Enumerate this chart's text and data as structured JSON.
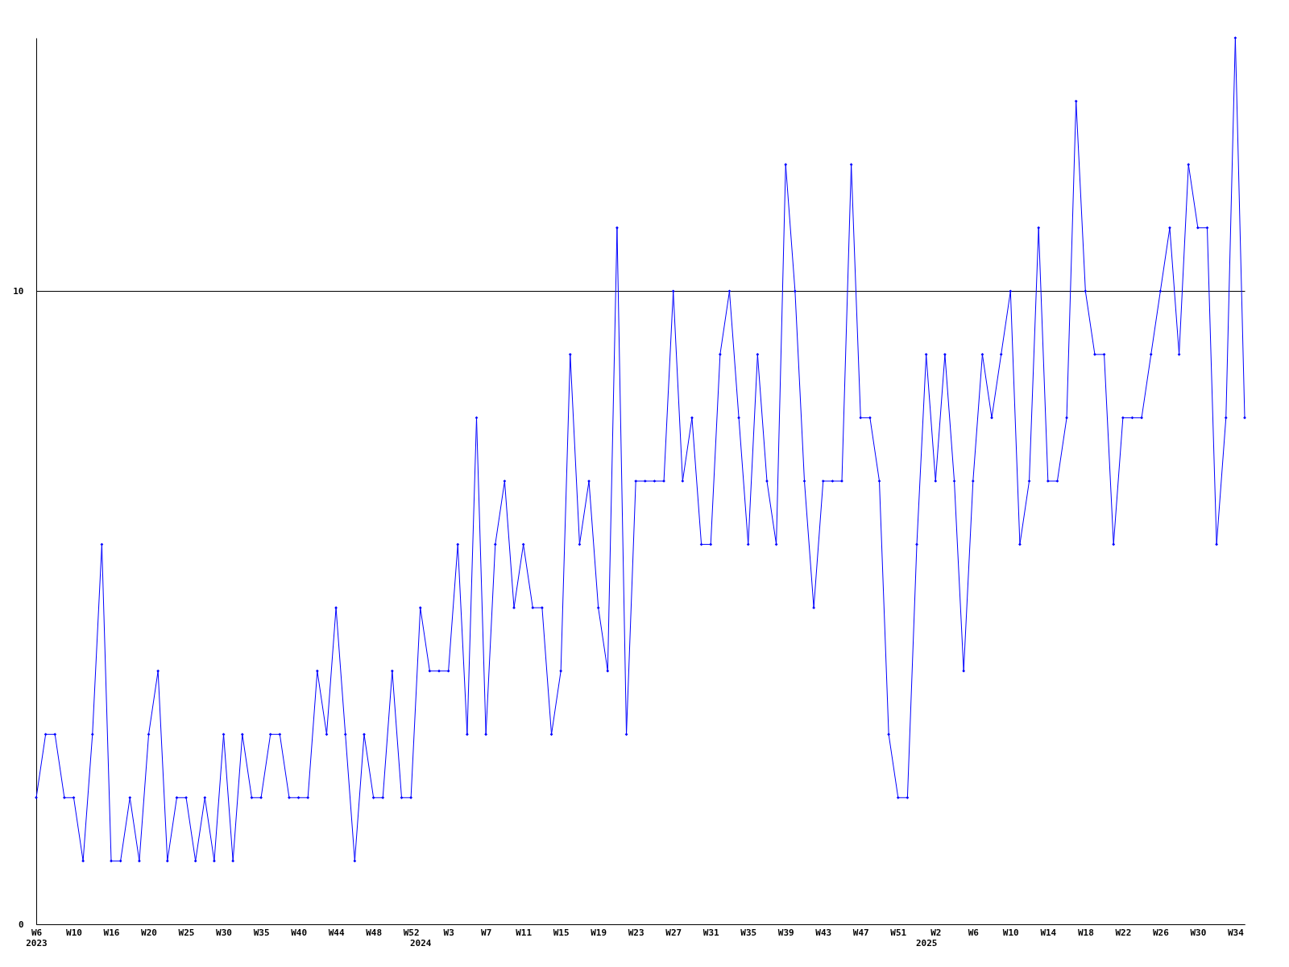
{
  "chart_data": {
    "type": "line",
    "categories": [
      "W6\n2023",
      null,
      null,
      null,
      "W10",
      null,
      null,
      null,
      "W16",
      null,
      null,
      null,
      "W20",
      null,
      null,
      null,
      "W25",
      null,
      null,
      null,
      "W30",
      null,
      null,
      null,
      "W35",
      null,
      null,
      null,
      "W40",
      null,
      null,
      null,
      "W44",
      null,
      null,
      null,
      "W48",
      null,
      null,
      null,
      "W52",
      "\n2024",
      null,
      null,
      "W3",
      null,
      null,
      null,
      "W7",
      null,
      null,
      null,
      "W11",
      null,
      null,
      null,
      "W15",
      null,
      null,
      null,
      "W19",
      null,
      null,
      null,
      "W23",
      null,
      null,
      null,
      "W27",
      null,
      null,
      null,
      "W31",
      null,
      null,
      null,
      "W35",
      null,
      null,
      null,
      "W39",
      null,
      null,
      null,
      "W43",
      null,
      null,
      null,
      "W47",
      null,
      null,
      null,
      "W51",
      null,
      null,
      "\n2025",
      "W2",
      null,
      null,
      null,
      "W6",
      null,
      null,
      null,
      "W10",
      null,
      null,
      null,
      "W14",
      null,
      null,
      null,
      "W18",
      null,
      null,
      null,
      "W22",
      null,
      null,
      null,
      "W26",
      null,
      null,
      null,
      "W30",
      null,
      null,
      null,
      "W34",
      null
    ],
    "series": [
      {
        "color": "#0000ff",
        "values": [
          2,
          3,
          3,
          2,
          2,
          1,
          3,
          6,
          1,
          1,
          2,
          1,
          3,
          4,
          1,
          2,
          2,
          1,
          2,
          1,
          3,
          1,
          3,
          2,
          2,
          3,
          3,
          2,
          2,
          2,
          4,
          3,
          5,
          3,
          1,
          3,
          2,
          2,
          4,
          2,
          2,
          5,
          4,
          4,
          4,
          6,
          3,
          8,
          3,
          6,
          7,
          5,
          6,
          5,
          5,
          3,
          4,
          9,
          6,
          7,
          5,
          4,
          11,
          3,
          7,
          7,
          7,
          7,
          10,
          7,
          8,
          6,
          6,
          9,
          10,
          8,
          6,
          9,
          7,
          6,
          12,
          10,
          7,
          5,
          7,
          7,
          7,
          12,
          8,
          8,
          7,
          3,
          2,
          2,
          6,
          9,
          7,
          9,
          7,
          4,
          7,
          9,
          8,
          9,
          10,
          6,
          7,
          11,
          7,
          7,
          8,
          13,
          10,
          9,
          9,
          6,
          8,
          8,
          8,
          9,
          10,
          11,
          9,
          12,
          11,
          11,
          6,
          8,
          14,
          8
        ]
      }
    ],
    "ylim": [
      0,
      14
    ],
    "yticks": [
      0,
      10
    ],
    "grid": "y",
    "marker": "diamond",
    "line_style": "solid"
  }
}
